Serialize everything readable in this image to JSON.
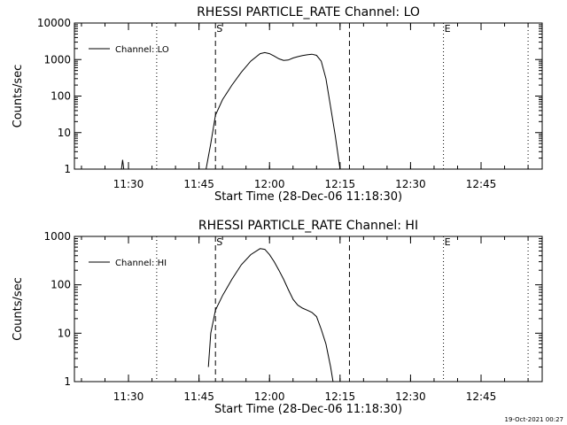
{
  "footer_stamp": "19-Oct-2021 00:27",
  "chart_data": [
    {
      "type": "line",
      "title": "RHESSI PARTICLE_RATE Channel: LO",
      "xlabel": "Start Time (28-Dec-06 11:18:30)",
      "ylabel": "Counts/sec",
      "y_scale": "log",
      "ylim": [
        1,
        10000
      ],
      "xlim": [
        "11:18:30",
        "12:58:00"
      ],
      "y_tick_labels": [
        "1",
        "10",
        "100",
        "1000",
        "10000"
      ],
      "x_tick_labels": [
        "11:30",
        "11:45",
        "12:00",
        "12:15",
        "12:30",
        "12:45"
      ],
      "legend": {
        "position": "top-left",
        "entries": [
          "Channel: LO"
        ]
      },
      "markers": [
        {
          "time": "11:36:00",
          "style": "dotted",
          "label": ""
        },
        {
          "time": "11:48:30",
          "style": "dashed",
          "label": "S"
        },
        {
          "time": "12:17:00",
          "style": "dashed",
          "label": ""
        },
        {
          "time": "12:37:00",
          "style": "dotted",
          "label": "E"
        },
        {
          "time": "12:55:00",
          "style": "dotted",
          "label": ""
        }
      ],
      "series": [
        {
          "name": "Channel: LO",
          "color": "#000000",
          "points": [
            [
              "11:28:30",
              1
            ],
            [
              "11:28:45",
              1.8
            ],
            [
              "11:29:00",
              1
            ],
            [
              "11:46:30",
              1
            ],
            [
              "11:47:30",
              5
            ],
            [
              "11:48:30",
              30
            ],
            [
              "11:50:00",
              80
            ],
            [
              "11:52:00",
              200
            ],
            [
              "11:54:00",
              450
            ],
            [
              "11:56:00",
              900
            ],
            [
              "11:58:00",
              1450
            ],
            [
              "11:59:00",
              1550
            ],
            [
              "12:00:00",
              1450
            ],
            [
              "12:01:00",
              1250
            ],
            [
              "12:02:00",
              1050
            ],
            [
              "12:03:00",
              950
            ],
            [
              "12:04:00",
              970
            ],
            [
              "12:05:00",
              1100
            ],
            [
              "12:06:00",
              1200
            ],
            [
              "12:07:00",
              1280
            ],
            [
              "12:08:00",
              1350
            ],
            [
              "12:09:00",
              1400
            ],
            [
              "12:10:00",
              1300
            ],
            [
              "12:11:00",
              900
            ],
            [
              "12:12:00",
              300
            ],
            [
              "12:13:00",
              50
            ],
            [
              "12:14:00",
              8
            ],
            [
              "12:15:00",
              1
            ]
          ]
        }
      ]
    },
    {
      "type": "line",
      "title": "RHESSI PARTICLE_RATE Channel: HI",
      "xlabel": "Start Time (28-Dec-06 11:18:30)",
      "ylabel": "Counts/sec",
      "y_scale": "log",
      "ylim": [
        1,
        1000
      ],
      "xlim": [
        "11:18:30",
        "12:58:00"
      ],
      "y_tick_labels": [
        "1",
        "10",
        "100",
        "1000"
      ],
      "x_tick_labels": [
        "11:30",
        "11:45",
        "12:00",
        "12:15",
        "12:30",
        "12:45"
      ],
      "legend": {
        "position": "top-left",
        "entries": [
          "Channel: HI"
        ]
      },
      "markers": [
        {
          "time": "11:36:00",
          "style": "dotted",
          "label": ""
        },
        {
          "time": "11:48:30",
          "style": "dashed",
          "label": "S"
        },
        {
          "time": "12:17:00",
          "style": "dashed",
          "label": ""
        },
        {
          "time": "12:37:00",
          "style": "dotted",
          "label": "E"
        },
        {
          "time": "12:55:00",
          "style": "dotted",
          "label": ""
        }
      ],
      "series": [
        {
          "name": "Channel: HI",
          "color": "#000000",
          "points": [
            [
              "11:47:00",
              2
            ],
            [
              "11:47:30",
              10
            ],
            [
              "11:48:30",
              30
            ],
            [
              "11:50:00",
              60
            ],
            [
              "11:52:00",
              130
            ],
            [
              "11:54:00",
              260
            ],
            [
              "11:56:00",
              420
            ],
            [
              "11:58:00",
              560
            ],
            [
              "11:59:00",
              540
            ],
            [
              "12:00:00",
              420
            ],
            [
              "12:01:00",
              300
            ],
            [
              "12:02:00",
              200
            ],
            [
              "12:03:00",
              130
            ],
            [
              "12:04:00",
              80
            ],
            [
              "12:05:00",
              50
            ],
            [
              "12:06:00",
              38
            ],
            [
              "12:07:00",
              33
            ],
            [
              "12:08:00",
              30
            ],
            [
              "12:09:00",
              27
            ],
            [
              "12:10:00",
              22
            ],
            [
              "12:11:00",
              12
            ],
            [
              "12:12:00",
              6
            ],
            [
              "12:13:00",
              2
            ],
            [
              "12:13:30",
              1
            ]
          ]
        }
      ]
    }
  ]
}
